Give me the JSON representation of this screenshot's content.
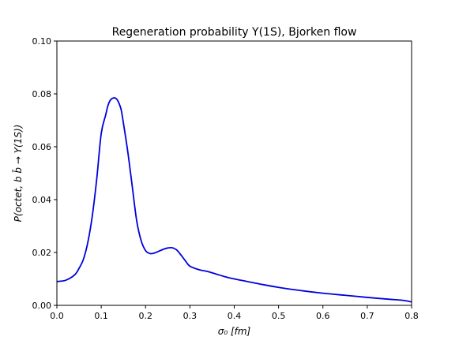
{
  "chart_data": {
    "type": "line",
    "title": "Regeneration probability Υ(1S), Bjorken flow",
    "xlabel": "σ₀ [fm]",
    "ylabel": "P(octet, b b̄ → Υ(1S))",
    "xlim": [
      0.0,
      0.8
    ],
    "ylim": [
      0.0,
      0.1
    ],
    "xticks": [
      "0.0",
      "0.1",
      "0.2",
      "0.3",
      "0.4",
      "0.5",
      "0.6",
      "0.7",
      "0.8"
    ],
    "yticks": [
      "0.00",
      "0.02",
      "0.04",
      "0.06",
      "0.08",
      "0.10"
    ],
    "grid": false,
    "line_color": "#0000dd",
    "series": [
      {
        "x": [
          0.0,
          0.02,
          0.04,
          0.05,
          0.06,
          0.07,
          0.08,
          0.09,
          0.1,
          0.11,
          0.115,
          0.12,
          0.125,
          0.13,
          0.135,
          0.14,
          0.145,
          0.15,
          0.16,
          0.17,
          0.18,
          0.19,
          0.2,
          0.21,
          0.22,
          0.23,
          0.24,
          0.25,
          0.26,
          0.27,
          0.28,
          0.29,
          0.3,
          0.32,
          0.34,
          0.36,
          0.38,
          0.4,
          0.43,
          0.46,
          0.5,
          0.55,
          0.6,
          0.65,
          0.7,
          0.75,
          0.78,
          0.8
        ],
        "y": [
          0.009,
          0.0095,
          0.0115,
          0.014,
          0.0175,
          0.024,
          0.034,
          0.048,
          0.065,
          0.072,
          0.0755,
          0.0775,
          0.0783,
          0.0785,
          0.078,
          0.0765,
          0.074,
          0.069,
          0.058,
          0.045,
          0.032,
          0.0245,
          0.0207,
          0.0196,
          0.0198,
          0.0205,
          0.0212,
          0.0217,
          0.0218,
          0.021,
          0.019,
          0.0168,
          0.0148,
          0.0135,
          0.0128,
          0.0118,
          0.0108,
          0.01,
          0.009,
          0.008,
          0.0068,
          0.0056,
          0.0046,
          0.0038,
          0.003,
          0.0023,
          0.0019,
          0.0013
        ]
      }
    ]
  }
}
